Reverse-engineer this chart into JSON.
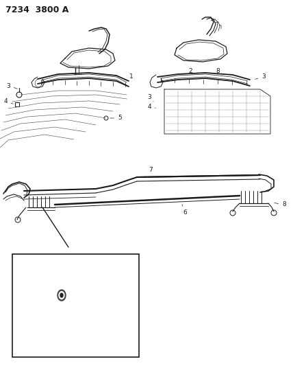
{
  "title": "7234  3800 A",
  "bg_color": "#ffffff",
  "line_color": "#1a1a1a",
  "fig_width": 4.28,
  "fig_height": 5.33,
  "dpi": 100,
  "title_fontsize": 9,
  "label_fontsize": 6.5
}
